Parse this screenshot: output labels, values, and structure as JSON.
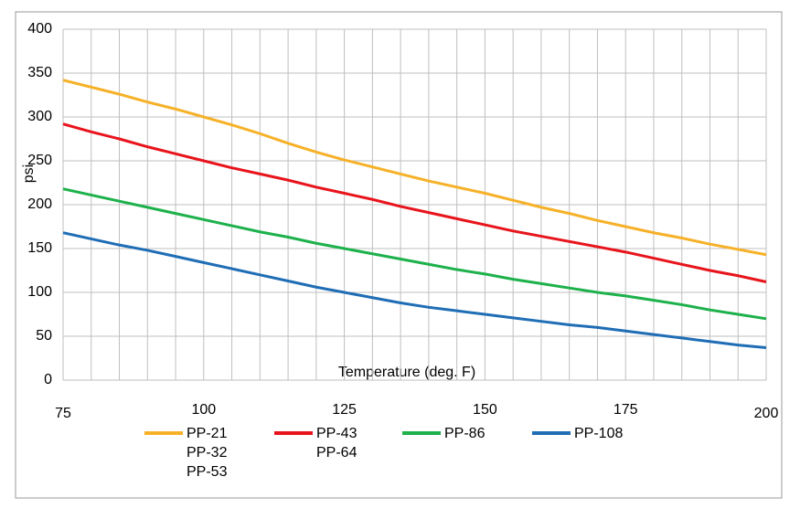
{
  "chart_data": {
    "type": "line",
    "x_label": "Temperature (deg. F)",
    "y_label": "psi",
    "x": [
      75,
      80,
      85,
      90,
      95,
      100,
      105,
      110,
      115,
      120,
      125,
      130,
      135,
      140,
      145,
      150,
      155,
      160,
      165,
      170,
      175,
      180,
      185,
      190,
      195,
      200
    ],
    "series": [
      {
        "name": [
          "PP-21",
          "PP-32",
          "PP-53"
        ],
        "color": "#f6b128",
        "values": [
          342,
          334,
          326,
          317,
          309,
          300,
          291,
          281,
          270,
          260,
          251,
          243,
          235,
          227,
          220,
          213,
          205,
          197,
          190,
          182,
          175,
          168,
          162,
          155,
          149,
          143
        ]
      },
      {
        "name": [
          "PP-43",
          "PP-64"
        ],
        "color": "#e8141c",
        "values": [
          292,
          283,
          275,
          266,
          258,
          250,
          242,
          235,
          228,
          220,
          213,
          206,
          198,
          191,
          184,
          177,
          170,
          164,
          158,
          152,
          146,
          139,
          132,
          125,
          119,
          112
        ]
      },
      {
        "name": [
          "PP-86"
        ],
        "color": "#1db14b",
        "values": [
          218,
          211,
          204,
          197,
          190,
          183,
          176,
          169,
          163,
          156,
          150,
          144,
          138,
          132,
          126,
          121,
          115,
          110,
          105,
          100,
          96,
          91,
          86,
          80,
          75,
          70
        ]
      },
      {
        "name": [
          "PP-108"
        ],
        "color": "#1f6db5",
        "values": [
          168,
          161,
          154,
          148,
          141,
          134,
          127,
          120,
          113,
          106,
          100,
          94,
          88,
          83,
          79,
          75,
          71,
          67,
          63,
          60,
          56,
          52,
          48,
          44,
          40,
          37
        ]
      }
    ],
    "xlim": [
      75,
      200
    ],
    "xticks": [
      75,
      100,
      125,
      150,
      175,
      200
    ],
    "x_grid_step": 5,
    "ylim": [
      0,
      400
    ],
    "yticks": [
      0,
      50,
      100,
      150,
      200,
      250,
      300,
      350,
      400
    ],
    "grid": true,
    "legend": "bottom"
  }
}
